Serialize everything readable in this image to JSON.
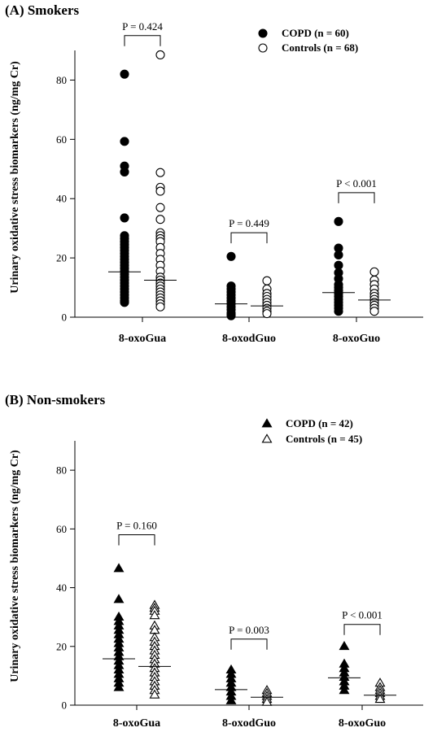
{
  "chart_data": [
    {
      "type": "scatter",
      "panel_title": "(A) Smokers",
      "ylabel": "Urinary oxidative stress biomarkers (ng/mg Cr)",
      "ylim": [
        0,
        90
      ],
      "yticks": [
        0,
        20,
        40,
        60,
        80
      ],
      "categories": [
        "8-oxoGua",
        "8-oxodGuo",
        "8-oxoGuo"
      ],
      "marker": "circle",
      "series": [
        {
          "name": "COPD (n = 60)",
          "fill": "filled",
          "medians": [
            15.3,
            4.5,
            8.3
          ],
          "points": [
            [
              82,
              59.3,
              51,
              49,
              33.5,
              27.5,
              26.5,
              25.5,
              24.5,
              23.5,
              22.5,
              21.5,
              20.5,
              19.5,
              18.5,
              17.5,
              16.5,
              15.5,
              14.5,
              13.5,
              12.5,
              11.5,
              10.5,
              9.5,
              8.5,
              7.5,
              6.5,
              5.5,
              5
            ],
            [
              20.5,
              10.5,
              9.5,
              8.5,
              7.5,
              6.5,
              5.5,
              4.5,
              3.5,
              2.5,
              1.5,
              1,
              0.5
            ],
            [
              32.3,
              23.3,
              21,
              17.5,
              15,
              13,
              11,
              10,
              9,
              8,
              7,
              6,
              5,
              4,
              3,
              2
            ]
          ]
        },
        {
          "name": "Controls (n = 68)",
          "fill": "open",
          "medians": [
            12.5,
            3.8,
            5.8
          ],
          "points": [
            [
              88.5,
              48.8,
              43.8,
              42.5,
              37,
              33,
              28.5,
              27.5,
              26.5,
              25.5,
              23.5,
              21.5,
              19.5,
              17.5,
              15.5,
              13.5,
              12.5,
              11.5,
              10.5,
              9.5,
              8.5,
              7.5,
              6.5,
              5.5,
              4.5,
              3.5
            ],
            [
              12.3,
              9.5,
              8,
              7,
              6,
              5,
              4,
              3,
              2,
              1.2
            ],
            [
              15.3,
              12.5,
              11,
              9.5,
              8,
              7,
              6,
              5,
              4,
              3,
              2
            ]
          ]
        }
      ],
      "comparisons": [
        "P = 0.424",
        "P = 0.449",
        "P < 0.001"
      ],
      "comparison_levels": [
        95,
        28.5,
        42
      ]
    },
    {
      "type": "scatter",
      "panel_title": "(B) Non-smokers",
      "ylabel": "Urinary oxidative stress biomarkers (ng/mg Cr)",
      "ylim": [
        0,
        90
      ],
      "yticks": [
        0,
        20,
        40,
        60,
        80
      ],
      "categories": [
        "8-oxoGua",
        "8-oxodGuo",
        "8-oxoGuo"
      ],
      "marker": "triangle",
      "series": [
        {
          "name": "COPD (n = 42)",
          "fill": "filled",
          "medians": [
            15.8,
            5.3,
            9.3
          ],
          "points": [
            [
              46.5,
              36,
              30,
              28.5,
              27,
              25.5,
              24,
              22.5,
              21,
              19.5,
              18,
              16.5,
              15,
              13.5,
              12,
              10.5,
              9,
              7.5,
              6
            ],
            [
              12,
              10.5,
              9,
              7.5,
              6,
              4.5,
              3,
              1.5
            ],
            [
              20,
              14,
              12.5,
              11,
              9.5,
              8,
              6.5,
              5
            ]
          ]
        },
        {
          "name": "Controls (n = 45)",
          "fill": "open",
          "medians": [
            13.2,
            2.7,
            3.4
          ],
          "points": [
            [
              34,
              33,
              32,
              30.5,
              27,
              25.5,
              23,
              21.5,
              20,
              18.5,
              17,
              15.5,
              14,
              12.5,
              11,
              9.5,
              8,
              6.5,
              5,
              3.5
            ],
            [
              5,
              4,
              3,
              2,
              1
            ],
            [
              7.5,
              6,
              5,
              4,
              3,
              2
            ]
          ]
        }
      ],
      "comparisons": [
        "P = 0.160",
        "P = 0.003",
        "P < 0.001"
      ],
      "comparison_levels": [
        58,
        22.5,
        27.5
      ]
    }
  ]
}
